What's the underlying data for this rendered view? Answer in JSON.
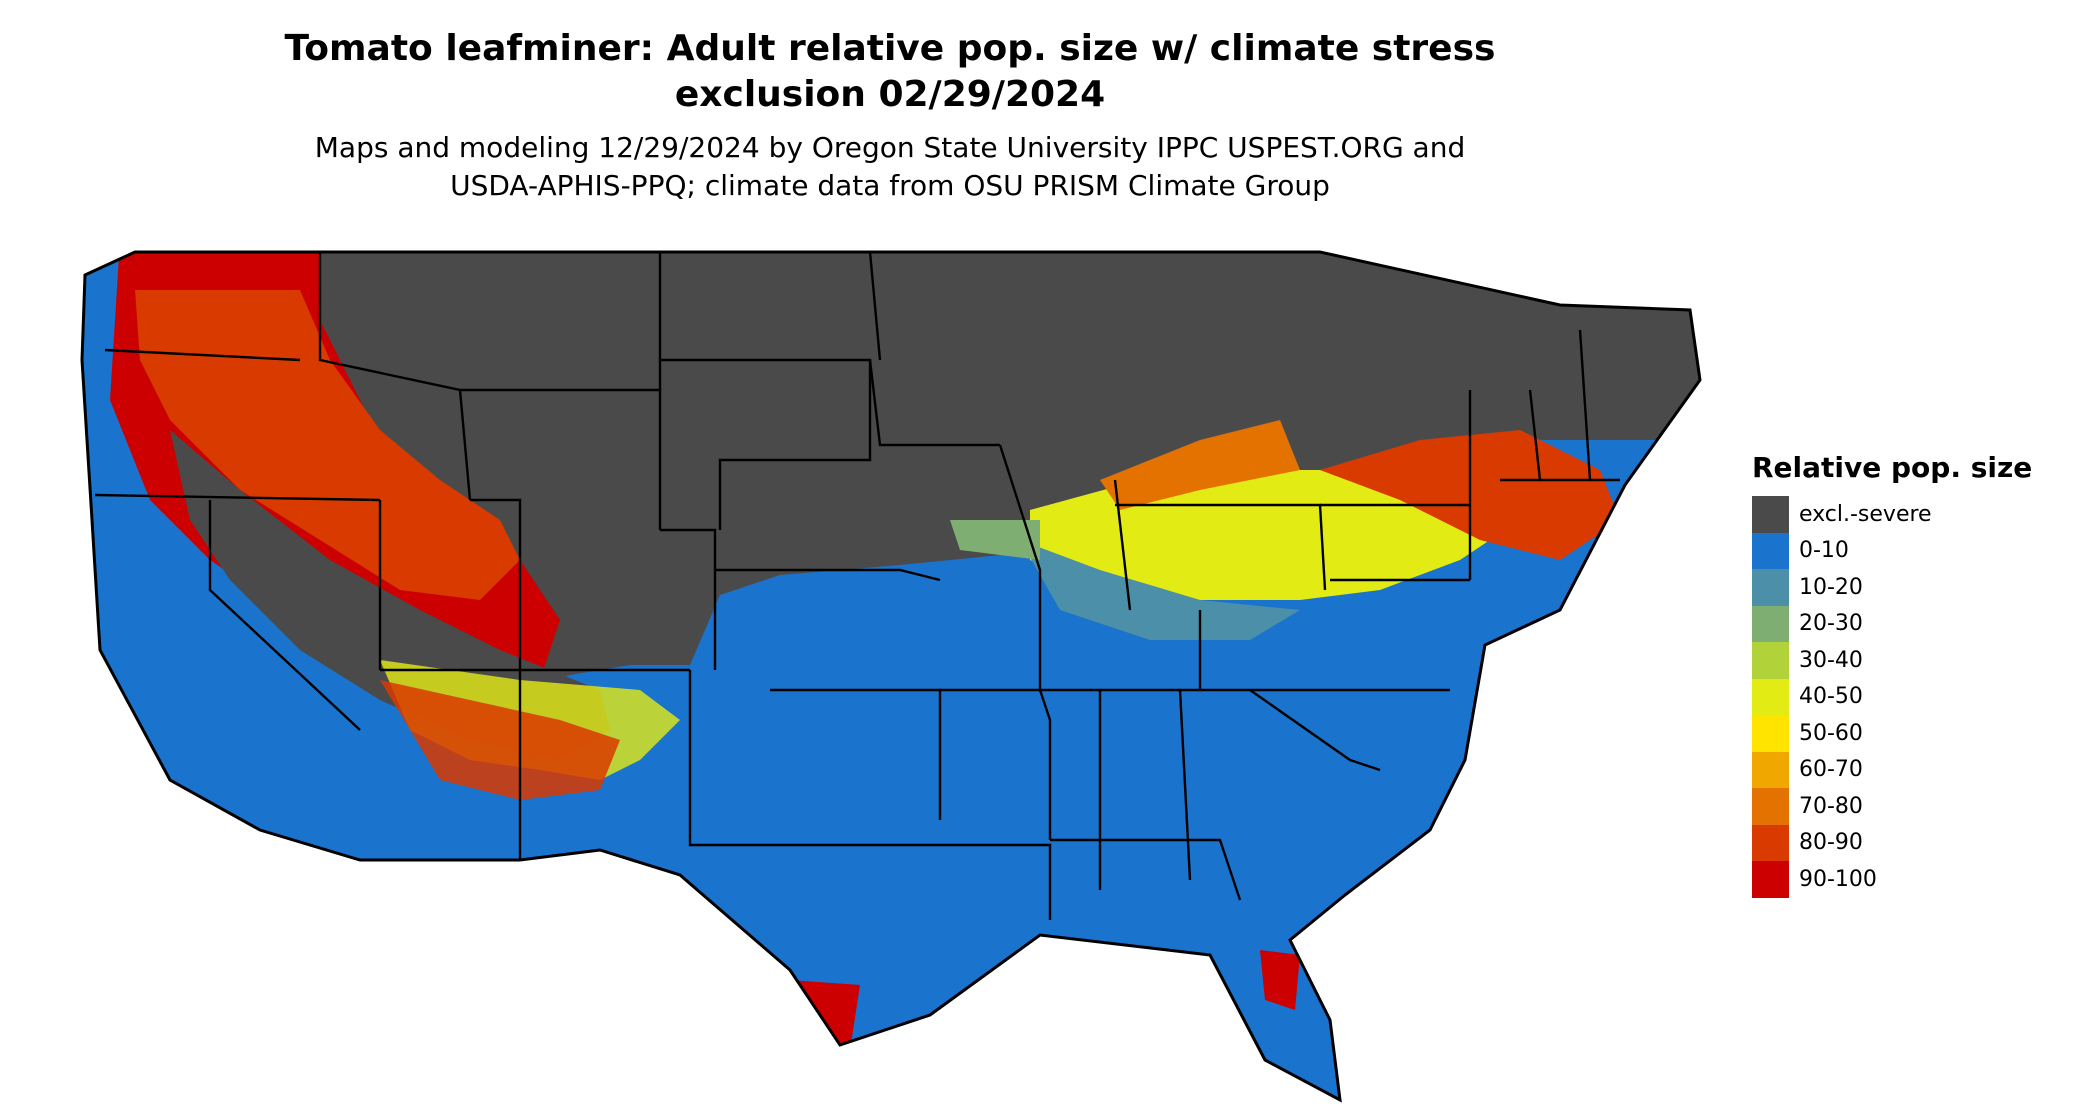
{
  "header": {
    "title_line1": "Tomato leafminer: Adult relative pop. size w/ climate stress",
    "title_line2": "exclusion 02/29/2024",
    "subtitle_line1": "Maps and modeling 12/29/2024 by Oregon State University IPPC USPEST.ORG and",
    "subtitle_line2": "USDA-APHIS-PPQ; climate data from OSU PRISM Climate Group"
  },
  "legend": {
    "title": "Relative pop. size",
    "items": [
      {
        "label": "excl.-severe",
        "color": "#4a4a4a"
      },
      {
        "label": "0-10",
        "color": "#1a73cc"
      },
      {
        "label": "10-20",
        "color": "#4b8fa8"
      },
      {
        "label": "20-30",
        "color": "#7fae73"
      },
      {
        "label": "30-40",
        "color": "#b2d23a"
      },
      {
        "label": "40-50",
        "color": "#e3eb14"
      },
      {
        "label": "50-60",
        "color": "#ffe400"
      },
      {
        "label": "60-70",
        "color": "#f0a800"
      },
      {
        "label": "70-80",
        "color": "#e47200"
      },
      {
        "label": "80-90",
        "color": "#d93a00"
      },
      {
        "label": "90-100",
        "color": "#cc0000"
      }
    ]
  }
}
